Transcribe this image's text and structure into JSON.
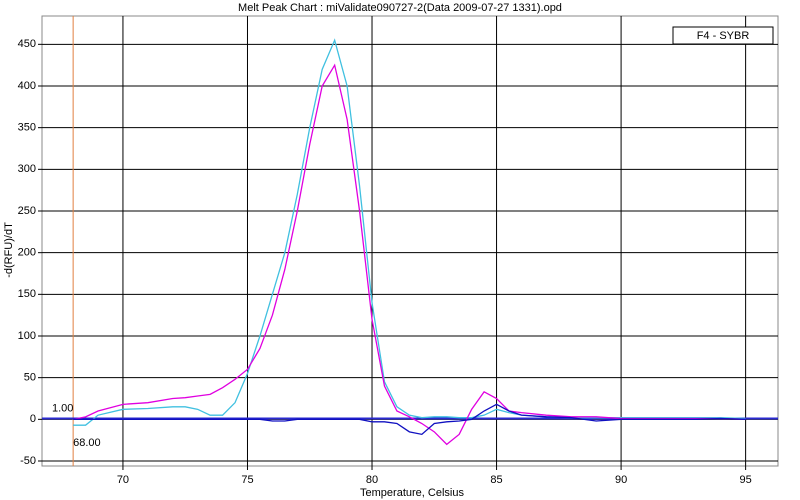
{
  "chart_data": {
    "type": "line",
    "title": "Melt Peak Chart : miValidate090727-2(Data 2009-07-27 1331).opd",
    "x_label": "Temperature, Celsius",
    "y_label": "-d(RFU)/dT",
    "legend": "F4 - SYBR",
    "threshold": {
      "value": 1,
      "label": "1.00",
      "color": "#2a2ad0"
    },
    "marker_x": {
      "value": 68,
      "label": "68.00",
      "color": "#e08040"
    },
    "x": [
      68,
      68.5,
      69,
      70,
      71,
      72,
      72.5,
      73,
      73.5,
      74,
      74.5,
      75,
      75.5,
      76,
      76.5,
      77,
      77.5,
      78,
      78.5,
      79,
      79.5,
      80,
      80.5,
      81,
      81.5,
      82,
      82.5,
      83,
      83.5,
      84,
      84.5,
      85,
      85.5,
      86,
      87,
      88,
      89,
      90,
      91,
      92,
      93,
      94,
      95
    ],
    "series": [
      {
        "color": "#40c0e0",
        "values": [
          -7,
          -7,
          5,
          12,
          13,
          15,
          15,
          12,
          5,
          5,
          20,
          55,
          100,
          150,
          200,
          270,
          350,
          420,
          455,
          400,
          280,
          140,
          45,
          15,
          5,
          2,
          3,
          3,
          2,
          2,
          5,
          12,
          8,
          5,
          3,
          2,
          2,
          2,
          2,
          2,
          2,
          2,
          1
        ]
      },
      {
        "color": "#e000e0",
        "values": [
          0,
          3,
          10,
          18,
          20,
          25,
          26,
          28,
          30,
          38,
          48,
          60,
          85,
          125,
          180,
          250,
          330,
          400,
          425,
          360,
          250,
          120,
          40,
          10,
          3,
          -5,
          -15,
          -30,
          -18,
          12,
          33,
          25,
          10,
          8,
          5,
          3,
          3,
          1,
          1,
          1,
          1,
          1,
          0
        ]
      },
      {
        "color": "#1010c0",
        "values": [
          0,
          0,
          0,
          0,
          0,
          0,
          0,
          0,
          0,
          0,
          0,
          0,
          0,
          -2,
          -2,
          0,
          0,
          0,
          0,
          0,
          0,
          -3,
          -3,
          -5,
          -15,
          -18,
          -5,
          -3,
          -2,
          0,
          10,
          18,
          10,
          5,
          3,
          2,
          -2,
          0,
          0,
          0,
          0,
          1,
          0
        ]
      }
    ],
    "xlim": [
      66.75,
      96.3
    ],
    "ylim": [
      -56,
      484
    ],
    "xticks": [
      70,
      75,
      80,
      85,
      90,
      95
    ],
    "yticks": [
      -50,
      0,
      50,
      100,
      150,
      200,
      250,
      300,
      350,
      400,
      450
    ],
    "grid": true
  }
}
